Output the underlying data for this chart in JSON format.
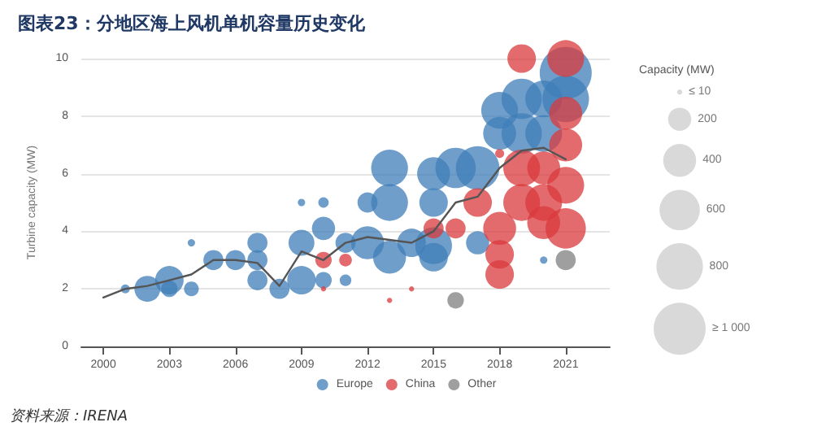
{
  "chart_data": {
    "type": "bubble",
    "title": "图表23：分地区海上风机单机容量历史变化",
    "ylabel": "Turbine capacity (MW)",
    "legend_title": "Capacity (MW)",
    "annotations": [
      "资料来源：IRENA"
    ],
    "xlim": [
      1999,
      2023
    ],
    "xticks": [
      2000,
      2003,
      2006,
      2009,
      2012,
      2015,
      2018,
      2021
    ],
    "ylim": [
      0,
      10
    ],
    "yticks": [
      0,
      2,
      4,
      6,
      8,
      10
    ],
    "grid": "y",
    "legend": "bottom",
    "size_legend": [
      {
        "value": 10,
        "label": "≤ 10"
      },
      {
        "value": 200,
        "label": "200"
      },
      {
        "value": 400,
        "label": "400"
      },
      {
        "value": 600,
        "label": "600"
      },
      {
        "value": 800,
        "label": "800"
      },
      {
        "value": 1000,
        "label": "≥ 1 000"
      }
    ],
    "series": [
      {
        "name": "Europe",
        "color": "#3f7db8",
        "x": [
          2001,
          2002,
          2003,
          2003,
          2004,
          2004,
          2005,
          2006,
          2007,
          2007,
          2007,
          2008,
          2009,
          2009,
          2009,
          2010,
          2010,
          2010,
          2011,
          2011,
          2012,
          2012,
          2013,
          2013,
          2013,
          2014,
          2015,
          2015,
          2015,
          2015,
          2016,
          2017,
          2017,
          2018,
          2018,
          2019,
          2019,
          2020,
          2020,
          2020,
          2021,
          2021
        ],
        "values": [
          2,
          2,
          2.3,
          2,
          2,
          3.6,
          3,
          3,
          3.6,
          3,
          2.3,
          2,
          5,
          3.6,
          2.3,
          5,
          4.1,
          2.3,
          2.3,
          3.6,
          5,
          3.6,
          6.2,
          5,
          3.1,
          3.6,
          6,
          5,
          3.5,
          3.1,
          6.2,
          6.2,
          3.6,
          8.2,
          7.4,
          8.6,
          7.4,
          8.6,
          7.4,
          3,
          9.5,
          8.6
        ],
        "sizes": [
          30,
          250,
          300,
          100,
          80,
          20,
          150,
          150,
          150,
          150,
          150,
          150,
          20,
          250,
          300,
          40,
          200,
          100,
          50,
          150,
          150,
          400,
          500,
          500,
          400,
          300,
          400,
          300,
          500,
          300,
          600,
          700,
          200,
          500,
          400,
          600,
          600,
          500,
          500,
          20,
          1000,
          800
        ]
      },
      {
        "name": "China",
        "color": "#d93a3c",
        "x": [
          2010,
          2011,
          2010,
          2015,
          2016,
          2017,
          2014,
          2013,
          2018,
          2018,
          2018,
          2018,
          2019,
          2019,
          2019,
          2020,
          2020,
          2020,
          2021,
          2021,
          2021,
          2021,
          2021
        ],
        "values": [
          3,
          3,
          2,
          4.1,
          4.1,
          5,
          2,
          1.6,
          4.1,
          3.2,
          2.5,
          6.7,
          10,
          6.2,
          5,
          6.2,
          5,
          4.3,
          10,
          8.1,
          7,
          5.6,
          4.1
        ],
        "sizes": [
          100,
          60,
          10,
          150,
          150,
          300,
          10,
          10,
          400,
          300,
          300,
          30,
          300,
          500,
          500,
          400,
          500,
          400,
          500,
          400,
          400,
          500,
          600
        ]
      },
      {
        "name": "Other",
        "color": "#7f7f7f",
        "x": [
          2016,
          2021
        ],
        "values": [
          1.6,
          3
        ],
        "sizes": [
          100,
          150
        ]
      },
      {
        "type": "line",
        "color": "#555555",
        "marker": "none",
        "x": [
          2000,
          2001,
          2002,
          2003,
          2004,
          2005,
          2006,
          2007,
          2008,
          2009,
          2010,
          2011,
          2012,
          2013,
          2014,
          2015,
          2016,
          2017,
          2018,
          2019,
          2020,
          2021
        ],
        "values": [
          1.7,
          2,
          2.1,
          2.3,
          2.5,
          3,
          3,
          2.9,
          2.1,
          3.3,
          3,
          3.6,
          3.8,
          3.7,
          3.6,
          4,
          5,
          5.2,
          6.2,
          6.8,
          6.9,
          6.5
        ]
      }
    ]
  }
}
